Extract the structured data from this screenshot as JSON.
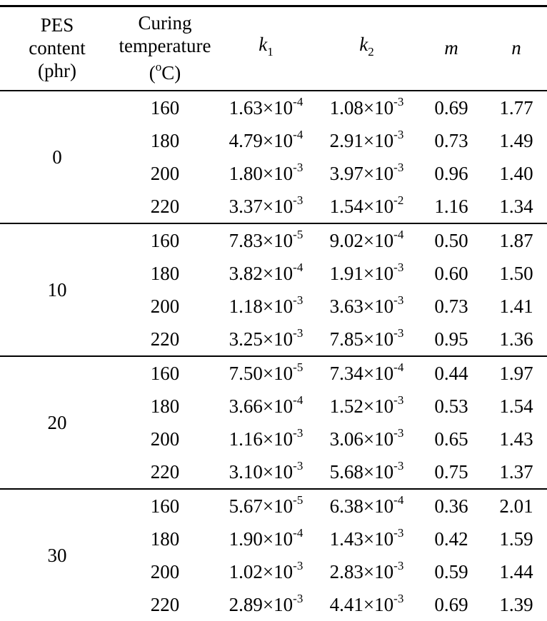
{
  "colors": {
    "background": "#ffffff",
    "text": "#000000",
    "rule": "#000000"
  },
  "header": {
    "pes": [
      "PES",
      "content",
      "(phr)"
    ],
    "curing": {
      "line1": "Curing",
      "line2": "temperature",
      "paren_open": "(",
      "degree_sup": "o",
      "unit_close": "C)"
    },
    "k1": {
      "base": "k",
      "sub": "1"
    },
    "k2": {
      "base": "k",
      "sub": "2"
    },
    "m": "m",
    "n": "n"
  },
  "groups": [
    {
      "pes": "0",
      "rows": [
        {
          "temp": "160",
          "k1_base": "1.63×10",
          "k1_exp": "-4",
          "k2_base": "1.08×10",
          "k2_exp": "-3",
          "m": "0.69",
          "n": "1.77"
        },
        {
          "temp": "180",
          "k1_base": "4.79×10",
          "k1_exp": "-4",
          "k2_base": "2.91×10",
          "k2_exp": "-3",
          "m": "0.73",
          "n": "1.49"
        },
        {
          "temp": "200",
          "k1_base": "1.80×10",
          "k1_exp": "-3",
          "k2_base": "3.97×10",
          "k2_exp": "-3",
          "m": "0.96",
          "n": "1.40"
        },
        {
          "temp": "220",
          "k1_base": "3.37×10",
          "k1_exp": "-3",
          "k2_base": "1.54×10",
          "k2_exp": "-2",
          "m": "1.16",
          "n": "1.34"
        }
      ]
    },
    {
      "pes": "10",
      "rows": [
        {
          "temp": "160",
          "k1_base": "7.83×10",
          "k1_exp": "-5",
          "k2_base": "9.02×10",
          "k2_exp": "-4",
          "m": "0.50",
          "n": "1.87"
        },
        {
          "temp": "180",
          "k1_base": "3.82×10",
          "k1_exp": "-4",
          "k2_base": "1.91×10",
          "k2_exp": "-3",
          "m": "0.60",
          "n": "1.50"
        },
        {
          "temp": "200",
          "k1_base": "1.18×10",
          "k1_exp": "-3",
          "k2_base": "3.63×10",
          "k2_exp": "-3",
          "m": "0.73",
          "n": "1.41"
        },
        {
          "temp": "220",
          "k1_base": "3.25×10",
          "k1_exp": "-3",
          "k2_base": "7.85×10",
          "k2_exp": "-3",
          "m": "0.95",
          "n": "1.36"
        }
      ]
    },
    {
      "pes": "20",
      "rows": [
        {
          "temp": "160",
          "k1_base": "7.50×10",
          "k1_exp": "-5",
          "k2_base": "7.34×10",
          "k2_exp": "-4",
          "m": "0.44",
          "n": "1.97"
        },
        {
          "temp": "180",
          "k1_base": "3.66×10",
          "k1_exp": "-4",
          "k2_base": "1.52×10",
          "k2_exp": "-3",
          "m": "0.53",
          "n": "1.54"
        },
        {
          "temp": "200",
          "k1_base": "1.16×10",
          "k1_exp": "-3",
          "k2_base": "3.06×10",
          "k2_exp": "-3",
          "m": "0.65",
          "n": "1.43"
        },
        {
          "temp": "220",
          "k1_base": "3.10×10",
          "k1_exp": "-3",
          "k2_base": "5.68×10",
          "k2_exp": "-3",
          "m": "0.75",
          "n": "1.37"
        }
      ]
    },
    {
      "pes": "30",
      "rows": [
        {
          "temp": "160",
          "k1_base": "5.67×10",
          "k1_exp": "-5",
          "k2_base": "6.38×10",
          "k2_exp": "-4",
          "m": "0.36",
          "n": "2.01"
        },
        {
          "temp": "180",
          "k1_base": "1.90×10",
          "k1_exp": "-4",
          "k2_base": "1.43×10",
          "k2_exp": "-3",
          "m": "0.42",
          "n": "1.59"
        },
        {
          "temp": "200",
          "k1_base": "1.02×10",
          "k1_exp": "-3",
          "k2_base": "2.83×10",
          "k2_exp": "-3",
          "m": "0.59",
          "n": "1.44"
        },
        {
          "temp": "220",
          "k1_base": "2.89×10",
          "k1_exp": "-3",
          "k2_base": "4.41×10",
          "k2_exp": "-3",
          "m": "0.69",
          "n": "1.39"
        }
      ]
    }
  ]
}
